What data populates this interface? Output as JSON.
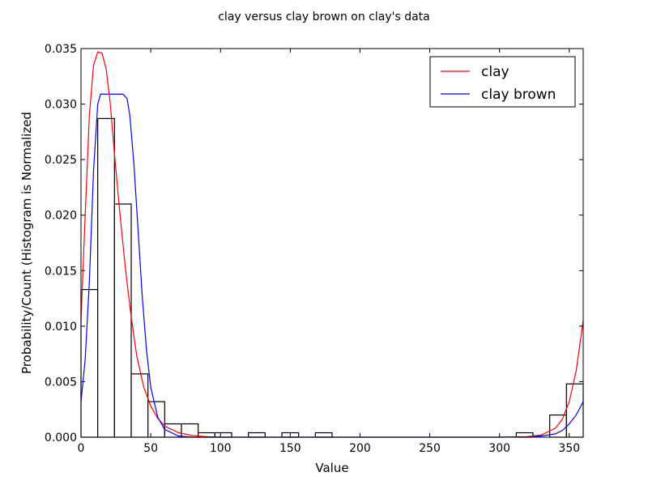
{
  "chart_data": {
    "type": "bar",
    "title": "clay versus clay brown on clay's data",
    "xlabel": "Value",
    "ylabel": "Probability/Count (Histogram is Normalized",
    "xlim": [
      0,
      360
    ],
    "ylim": [
      0,
      0.035
    ],
    "xticks": [
      "0",
      "50",
      "100",
      "150",
      "200",
      "250",
      "300",
      "350"
    ],
    "yticks": [
      "0.000",
      "0.005",
      "0.010",
      "0.015",
      "0.020",
      "0.025",
      "0.030",
      "0.035"
    ],
    "grid": false,
    "legend_position": "top-right",
    "histogram": {
      "bin_width": 12,
      "bin_starts": [
        0,
        12,
        24,
        36,
        48,
        60,
        72,
        84,
        96,
        120,
        144,
        168,
        312,
        336,
        348
      ],
      "values": [
        0.0133,
        0.0287,
        0.021,
        0.0057,
        0.0032,
        0.0012,
        0.0012,
        0.0004,
        0.0004,
        0.0004,
        0.0004,
        0.0004,
        0.0004,
        0.002,
        0.0048
      ]
    },
    "series": [
      {
        "name": "clay",
        "color": "#ff0000",
        "x": [
          0,
          3,
          6,
          9,
          12,
          15,
          18,
          21,
          24,
          28,
          32,
          36,
          40,
          45,
          50,
          55,
          60,
          70,
          80,
          90,
          100,
          300,
          320,
          330,
          340,
          345,
          350,
          355,
          360
        ],
        "y": [
          0.0105,
          0.02,
          0.029,
          0.0335,
          0.0347,
          0.0346,
          0.0332,
          0.03,
          0.0255,
          0.02,
          0.015,
          0.0108,
          0.0073,
          0.0045,
          0.0028,
          0.0017,
          0.001,
          0.0004,
          0.00015,
          5e-05,
          0.0,
          0.0,
          5e-05,
          0.0002,
          0.0008,
          0.0016,
          0.0032,
          0.006,
          0.0105
        ]
      },
      {
        "name": "clay brown",
        "color": "#0000ff",
        "x": [
          0,
          3,
          6,
          9,
          12,
          14,
          16,
          20,
          25,
          30,
          33,
          35,
          38,
          41,
          44,
          47,
          50,
          55,
          60,
          70,
          80,
          300,
          320,
          330,
          340,
          345,
          350,
          355,
          360
        ],
        "y": [
          0.0032,
          0.007,
          0.014,
          0.024,
          0.03,
          0.0309,
          0.0309,
          0.0309,
          0.0309,
          0.0309,
          0.0305,
          0.029,
          0.0245,
          0.0185,
          0.0125,
          0.0078,
          0.0045,
          0.0018,
          0.0007,
          0.0001,
          0.0,
          0.0,
          3e-05,
          0.0001,
          0.0003,
          0.0006,
          0.0012,
          0.002,
          0.0032
        ]
      }
    ]
  }
}
